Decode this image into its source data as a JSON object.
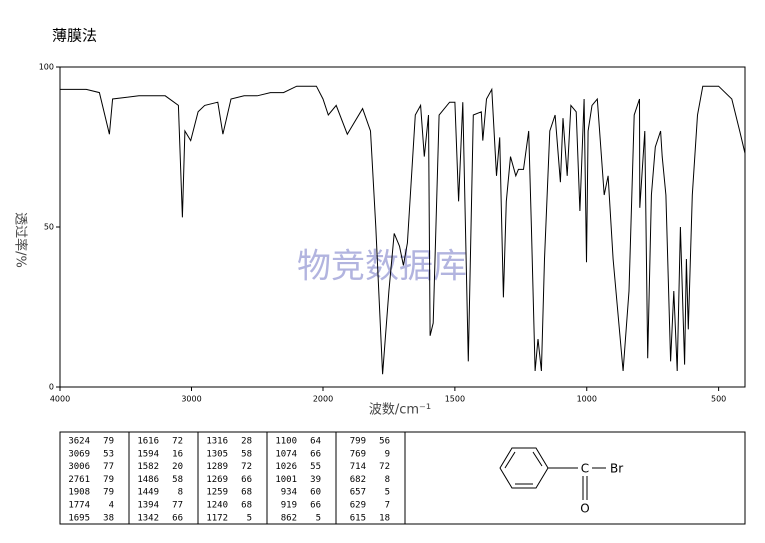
{
  "chart_data": {
    "type": "line",
    "title": "薄膜法",
    "xlabel": "波数/cm⁻¹",
    "ylabel": "透过率/%",
    "watermark": "物竞数据库",
    "xlim": [
      4000,
      400
    ],
    "x_break": 2000,
    "xticks": [
      4000,
      3000,
      2000,
      1500,
      1000,
      500
    ],
    "ylim": [
      0,
      100
    ],
    "yticks": [
      0,
      50,
      100
    ],
    "color": "#000000",
    "x": [
      4000,
      3800,
      3700,
      3624,
      3600,
      3400,
      3200,
      3100,
      3069,
      3050,
      3006,
      2950,
      2900,
      2800,
      2761,
      2700,
      2600,
      2500,
      2400,
      2300,
      2200,
      2100,
      2050,
      2000,
      1980,
      1950,
      1908,
      1850,
      1820,
      1800,
      1774,
      1750,
      1730,
      1710,
      1695,
      1680,
      1650,
      1630,
      1616,
      1600,
      1594,
      1582,
      1560,
      1520,
      1500,
      1486,
      1470,
      1449,
      1430,
      1400,
      1394,
      1380,
      1360,
      1342,
      1330,
      1316,
      1305,
      1289,
      1269,
      1259,
      1240,
      1220,
      1210,
      1196,
      1185,
      1172,
      1160,
      1140,
      1120,
      1100,
      1090,
      1074,
      1060,
      1040,
      1026,
      1010,
      1001,
      995,
      980,
      960,
      934,
      919,
      900,
      862,
      840,
      820,
      800,
      799,
      780,
      769,
      755,
      740,
      720,
      714,
      700,
      682,
      670,
      657,
      645,
      629,
      622,
      615,
      600,
      580,
      560,
      500,
      450,
      420,
      400
    ],
    "values": [
      93,
      93,
      92,
      79,
      90,
      91,
      91,
      88,
      53,
      80,
      77,
      86,
      88,
      89,
      79,
      90,
      91,
      91,
      92,
      92,
      94,
      94,
      94,
      90,
      85,
      88,
      79,
      87,
      80,
      50,
      4,
      30,
      48,
      44,
      38,
      45,
      85,
      88,
      72,
      85,
      16,
      20,
      85,
      89,
      89,
      58,
      89,
      8,
      85,
      86,
      77,
      90,
      93,
      66,
      78,
      28,
      58,
      72,
      66,
      68,
      68,
      80,
      50,
      5,
      15,
      5,
      40,
      80,
      85,
      64,
      84,
      66,
      88,
      86,
      55,
      90,
      39,
      80,
      88,
      90,
      60,
      66,
      40,
      5,
      30,
      85,
      90,
      56,
      80,
      9,
      60,
      75,
      80,
      72,
      60,
      8,
      30,
      5,
      50,
      7,
      40,
      18,
      60,
      85,
      94,
      94,
      90,
      80,
      73
    ]
  },
  "peak_table": {
    "columns": [
      [
        [
          3624,
          79
        ],
        [
          3069,
          53
        ],
        [
          3006,
          77
        ],
        [
          2761,
          79
        ],
        [
          1908,
          79
        ],
        [
          1774,
          4
        ],
        [
          1695,
          38
        ]
      ],
      [
        [
          1616,
          72
        ],
        [
          1594,
          16
        ],
        [
          1582,
          20
        ],
        [
          1486,
          58
        ],
        [
          1449,
          8
        ],
        [
          1394,
          77
        ],
        [
          1342,
          66
        ]
      ],
      [
        [
          1316,
          28
        ],
        [
          1305,
          58
        ],
        [
          1289,
          72
        ],
        [
          1269,
          66
        ],
        [
          1259,
          68
        ],
        [
          1240,
          68
        ],
        [
          1172,
          5
        ]
      ],
      [
        [
          1100,
          64
        ],
        [
          1074,
          66
        ],
        [
          1026,
          55
        ],
        [
          1001,
          39
        ],
        [
          934,
          60
        ],
        [
          919,
          66
        ],
        [
          862,
          5
        ]
      ],
      [
        [
          799,
          56
        ],
        [
          769,
          9
        ],
        [
          714,
          72
        ],
        [
          682,
          8
        ],
        [
          657,
          5
        ],
        [
          629,
          7
        ],
        [
          615,
          18
        ]
      ]
    ]
  },
  "structure": {
    "labels": [
      "C",
      "Br",
      "O"
    ]
  }
}
